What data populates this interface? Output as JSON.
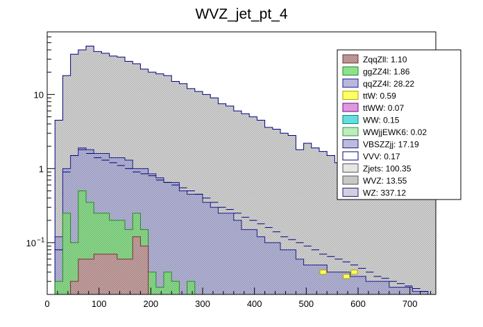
{
  "chart_data": {
    "type": "stacked-histogram",
    "title": "WVZ_jet_pt_4",
    "xlabel": "",
    "ylabel": "",
    "x_scale": "linear",
    "y_scale": "log",
    "xlim": [
      0,
      750
    ],
    "ylim": [
      0.02,
      70
    ],
    "grid": false,
    "legend_position": "top-right",
    "x_ticks": [
      {
        "value": 0,
        "label": "0"
      },
      {
        "value": 100,
        "label": "100"
      },
      {
        "value": 200,
        "label": "200"
      },
      {
        "value": 300,
        "label": "300"
      },
      {
        "value": 400,
        "label": "400"
      },
      {
        "value": 500,
        "label": "500"
      },
      {
        "value": 600,
        "label": "600"
      },
      {
        "value": 700,
        "label": "700"
      }
    ],
    "y_ticks": [
      {
        "value": 0.1,
        "label": "10",
        "exp": "−1"
      },
      {
        "value": 1,
        "label": "1",
        "exp": ""
      },
      {
        "value": 10,
        "label": "10",
        "exp": ""
      }
    ],
    "bin_width": 15,
    "stack_order": [
      "ZqqZll",
      "ggZZ4l",
      "qqZZ4l",
      "WZ"
    ],
    "series": [
      {
        "name": "ZqqZll",
        "legend": "ZqqZll: 1.10",
        "fill": "#c9a3a3",
        "stroke": "#7a3030",
        "hatch": true,
        "bins": [
          [
            45,
            0.03
          ],
          [
            60,
            0.06
          ],
          [
            75,
            0.06
          ],
          [
            90,
            0.07
          ],
          [
            105,
            0.07
          ],
          [
            120,
            0.07
          ],
          [
            135,
            0.06
          ],
          [
            150,
            0.06
          ],
          [
            165,
            0.12
          ],
          [
            180,
            0.09
          ]
        ]
      },
      {
        "name": "ggZZ4l",
        "legend": "ggZZ4l: 1.86",
        "fill": "#8ee08e",
        "stroke": "#228b22",
        "hatch": true,
        "bins": [
          [
            15,
            0.03
          ],
          [
            30,
            0.25
          ],
          [
            45,
            0.1
          ],
          [
            60,
            0.5
          ],
          [
            75,
            0.35
          ],
          [
            90,
            0.25
          ],
          [
            105,
            0.25
          ],
          [
            120,
            0.2
          ],
          [
            135,
            0.2
          ],
          [
            150,
            0.15
          ],
          [
            165,
            0.25
          ],
          [
            180,
            0.15
          ],
          [
            195,
            0.04
          ],
          [
            210,
            0.025
          ],
          [
            225,
            0.04
          ],
          [
            240,
            0.03
          ],
          [
            255,
            0.02
          ],
          [
            270,
            0.03
          ]
        ]
      },
      {
        "name": "qqZZ4l",
        "legend": "qqZZ4l: 28.22",
        "fill": "#b8b8dd",
        "stroke": "#1a1a8c",
        "hatch": true,
        "bins": [
          [
            15,
            0.12
          ],
          [
            30,
            1.0
          ],
          [
            45,
            1.5
          ],
          [
            60,
            1.9
          ],
          [
            75,
            1.8
          ],
          [
            90,
            1.6
          ],
          [
            105,
            1.6
          ],
          [
            120,
            1.4
          ],
          [
            135,
            1.4
          ],
          [
            150,
            1.3
          ],
          [
            165,
            1.0
          ],
          [
            180,
            1.0
          ],
          [
            195,
            0.85
          ],
          [
            210,
            0.75
          ],
          [
            225,
            0.65
          ],
          [
            240,
            0.65
          ],
          [
            255,
            0.5
          ],
          [
            270,
            0.45
          ],
          [
            285,
            0.45
          ],
          [
            300,
            0.35
          ],
          [
            315,
            0.3
          ],
          [
            330,
            0.25
          ],
          [
            345,
            0.25
          ],
          [
            360,
            0.2
          ],
          [
            375,
            0.15
          ],
          [
            390,
            0.15
          ],
          [
            405,
            0.12
          ],
          [
            420,
            0.1
          ],
          [
            435,
            0.1
          ],
          [
            450,
            0.08
          ],
          [
            465,
            0.08
          ],
          [
            480,
            0.06
          ],
          [
            495,
            0.05
          ],
          [
            510,
            0.05
          ],
          [
            525,
            0.05
          ],
          [
            540,
            0.04
          ],
          [
            555,
            0.04
          ],
          [
            570,
            0.04
          ],
          [
            585,
            0.035
          ],
          [
            600,
            0.035
          ],
          [
            615,
            0.03
          ],
          [
            630,
            0.03
          ],
          [
            645,
            0.03
          ],
          [
            660,
            0.025
          ],
          [
            675,
            0.025
          ],
          [
            690,
            0.025
          ],
          [
            705,
            0.022
          ],
          [
            720,
            0.022
          ],
          [
            735,
            0.02
          ]
        ]
      },
      {
        "name": "WZ",
        "legend": "WZ: 337.12",
        "fill": "#d8d8d8",
        "stroke": "#000080",
        "hatch": true,
        "bins": [
          [
            15,
            4.5
          ],
          [
            30,
            18
          ],
          [
            45,
            35
          ],
          [
            60,
            40
          ],
          [
            75,
            45
          ],
          [
            90,
            38
          ],
          [
            105,
            36
          ],
          [
            120,
            33
          ],
          [
            135,
            32
          ],
          [
            150,
            28
          ],
          [
            165,
            26
          ],
          [
            180,
            22
          ],
          [
            195,
            20
          ],
          [
            210,
            19
          ],
          [
            225,
            18
          ],
          [
            240,
            15
          ],
          [
            255,
            14
          ],
          [
            270,
            12
          ],
          [
            285,
            11
          ],
          [
            300,
            10
          ],
          [
            315,
            9.0
          ],
          [
            330,
            7.5
          ],
          [
            345,
            7.0
          ],
          [
            360,
            6.0
          ],
          [
            375,
            5.5
          ],
          [
            390,
            5.0
          ],
          [
            405,
            4.5
          ],
          [
            420,
            3.6
          ],
          [
            435,
            3.4
          ],
          [
            450,
            3.0
          ],
          [
            465,
            2.8
          ],
          [
            480,
            1.8
          ],
          [
            495,
            2.2
          ],
          [
            510,
            1.9
          ],
          [
            525,
            1.7
          ],
          [
            540,
            1.5
          ],
          [
            555,
            1.2
          ],
          [
            570,
            1.1
          ],
          [
            585,
            0.9
          ],
          [
            600,
            0.85
          ],
          [
            615,
            0.8
          ],
          [
            630,
            0.75
          ],
          [
            645,
            0.65
          ],
          [
            660,
            0.6
          ],
          [
            675,
            0.55
          ],
          [
            690,
            0.5
          ],
          [
            705,
            0.45
          ],
          [
            720,
            0.4
          ],
          [
            735,
            0.4
          ]
        ]
      }
    ],
    "overlays": [
      {
        "name": "WVZ",
        "fill": "#d8d8d8",
        "stroke": "#000080",
        "bins": [
          [
            15,
            0.08
          ],
          [
            30,
            0.9
          ],
          [
            45,
            1.5
          ],
          [
            60,
            1.8
          ],
          [
            75,
            1.6
          ],
          [
            90,
            1.4
          ],
          [
            105,
            1.3
          ],
          [
            120,
            1.2
          ],
          [
            135,
            1.1
          ],
          [
            150,
            1.0
          ],
          [
            165,
            0.9
          ],
          [
            180,
            0.85
          ],
          [
            195,
            0.8
          ],
          [
            210,
            0.7
          ],
          [
            225,
            0.65
          ],
          [
            240,
            0.6
          ],
          [
            255,
            0.55
          ],
          [
            270,
            0.5
          ],
          [
            285,
            0.45
          ],
          [
            300,
            0.4
          ],
          [
            315,
            0.35
          ],
          [
            330,
            0.3
          ],
          [
            345,
            0.28
          ],
          [
            360,
            0.25
          ],
          [
            375,
            0.22
          ],
          [
            390,
            0.2
          ],
          [
            405,
            0.18
          ],
          [
            420,
            0.16
          ],
          [
            435,
            0.14
          ],
          [
            450,
            0.12
          ],
          [
            465,
            0.11
          ],
          [
            480,
            0.1
          ],
          [
            495,
            0.09
          ],
          [
            510,
            0.08
          ],
          [
            525,
            0.07
          ],
          [
            540,
            0.065
          ],
          [
            555,
            0.06
          ],
          [
            570,
            0.055
          ],
          [
            585,
            0.05
          ],
          [
            600,
            0.045
          ],
          [
            615,
            0.04
          ],
          [
            630,
            0.035
          ],
          [
            645,
            0.033
          ],
          [
            660,
            0.03
          ],
          [
            675,
            0.028
          ],
          [
            690,
            0.026
          ],
          [
            705,
            0.024
          ],
          [
            720,
            0.022
          ],
          [
            735,
            0.02
          ]
        ]
      },
      {
        "name": "ttW",
        "fill": "#ffff66",
        "stroke": "#aaaa00",
        "bins": [
          [
            525,
            0.04
          ],
          [
            570,
            0.035
          ],
          [
            585,
            0.04
          ]
        ]
      }
    ],
    "legend": [
      {
        "label": "ZqqZll: 1.10",
        "fill": "#c9a3a3",
        "stroke": "#7a3030",
        "hatch": true
      },
      {
        "label": "ggZZ4l: 1.86",
        "fill": "#8ee08e",
        "stroke": "#228b22",
        "hatch": false
      },
      {
        "label": "qqZZ4l: 28.22",
        "fill": "#b8b8dd",
        "stroke": "#1a1a8c",
        "hatch": false
      },
      {
        "label": "ttW: 0.59",
        "fill": "#ffff66",
        "stroke": "#aaaa00",
        "hatch": false
      },
      {
        "label": "ttWW: 0.07",
        "fill": "#dd99dd",
        "stroke": "#880088",
        "hatch": false
      },
      {
        "label": "WW: 0.15",
        "fill": "#66dddd",
        "stroke": "#008888",
        "hatch": false
      },
      {
        "label": "WWjjEWK6: 0.02",
        "fill": "#bbeebb",
        "stroke": "#448844",
        "hatch": false
      },
      {
        "label": "VBSZZjj: 17.19",
        "fill": "#bbbbdd",
        "stroke": "#222266",
        "hatch": false
      },
      {
        "label": "VVV: 0.17",
        "fill": "#ffffff",
        "stroke": "#000080",
        "hatch": false
      },
      {
        "label": "Zjets: 100.35",
        "fill": "#e6e6e6",
        "stroke": "#555555",
        "hatch": false
      },
      {
        "label": "WVZ: 13.55",
        "fill": "#c8c8c8",
        "stroke": "#555555",
        "hatch": false
      },
      {
        "label": "WZ: 337.12",
        "fill": "#d0d0e0",
        "stroke": "#222266",
        "hatch": false
      }
    ]
  }
}
